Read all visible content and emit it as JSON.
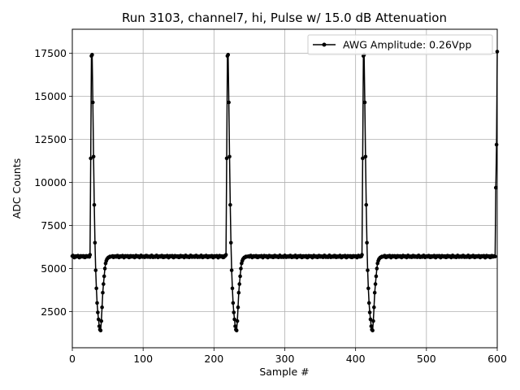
{
  "chart_data": {
    "type": "line",
    "title": "Run 3103, channel7, hi, Pulse w/ 15.0 dB Attenuation",
    "xlabel": "Sample #",
    "ylabel": "ADC Counts",
    "xlim": [
      0,
      600
    ],
    "ylim": [
      400,
      18900
    ],
    "xticks": [
      0,
      100,
      200,
      300,
      400,
      500,
      600
    ],
    "yticks": [
      2500,
      5000,
      7500,
      10000,
      12500,
      15000,
      17500
    ],
    "grid": true,
    "legend": "top-right",
    "color": "#000000",
    "baseline": 5700,
    "pulse_period": 192,
    "pulse_shape": {
      "offsets": [
        0,
        1,
        2,
        3,
        4,
        5,
        6,
        7,
        8,
        9,
        10,
        11,
        12,
        13,
        14,
        15,
        16,
        17,
        18,
        19,
        20,
        21,
        22,
        23,
        24,
        25,
        26,
        27,
        28,
        29,
        30,
        31
      ],
      "values": [
        5800,
        11400,
        17350,
        17420,
        14650,
        11500,
        8700,
        6500,
        4900,
        3850,
        3000,
        2450,
        2050,
        1650,
        1450,
        1400,
        1950,
        2750,
        3600,
        4100,
        4550,
        5000,
        5300,
        5450,
        5550,
        5600,
        5650,
        5650,
        5700,
        5680,
        5700,
        5700
      ]
    },
    "pulse_starts": [
      25,
      217,
      409
    ],
    "series": [
      {
        "name": "AWG Amplitude: 0.26Vpp"
      }
    ]
  }
}
